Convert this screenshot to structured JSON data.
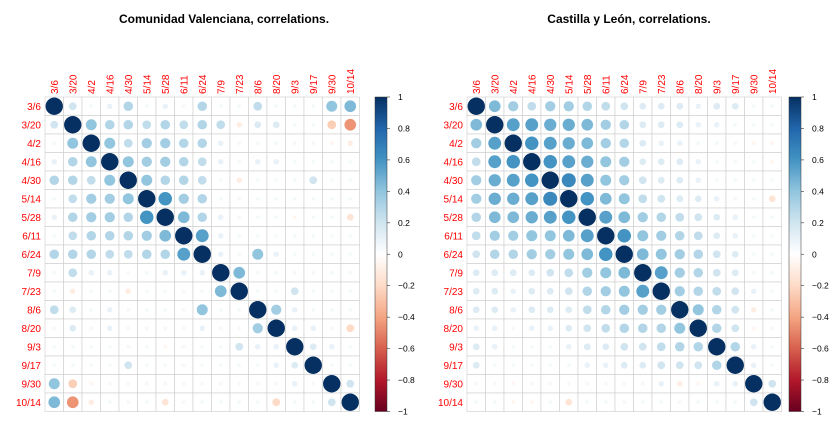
{
  "chart_data": [
    {
      "type": "correlation-matrix",
      "title": "Comunidad Valenciana, correlations.",
      "labels": [
        "3/6",
        "3/20",
        "4/2",
        "4/16",
        "4/30",
        "5/14",
        "5/28",
        "6/11",
        "6/24",
        "7/9",
        "7/23",
        "8/6",
        "8/20",
        "9/3",
        "9/17",
        "9/30",
        "10/14"
      ],
      "colorbar_ticks": [
        "1",
        "0.8",
        "0.6",
        "0.4",
        "0.2",
        "0",
        "−0.2",
        "−0.4",
        "−0.6",
        "−0.8",
        "−1"
      ],
      "range": [
        -1,
        1
      ],
      "matrix": [
        [
          1,
          0.2,
          0.05,
          0.1,
          0.3,
          0.05,
          0.1,
          0.05,
          0.3,
          0.05,
          0.05,
          0.25,
          0.05,
          0.05,
          0.05,
          0.4,
          0.45
        ],
        [
          0.2,
          1,
          0.4,
          0.3,
          0.3,
          0.25,
          0.3,
          0.25,
          0.3,
          0.25,
          -0.1,
          0.15,
          0.15,
          0.05,
          0.05,
          -0.25,
          -0.45
        ],
        [
          0.05,
          0.4,
          1,
          0.4,
          0.25,
          0.35,
          0.35,
          0.3,
          0.3,
          0.1,
          0.05,
          0.05,
          0.05,
          0.05,
          0.05,
          -0.05,
          -0.1
        ],
        [
          0.1,
          0.3,
          0.4,
          1,
          0.4,
          0.35,
          0.35,
          0.3,
          0.25,
          0.1,
          0.05,
          0.1,
          0.1,
          0.05,
          0.05,
          0.05,
          0.05
        ],
        [
          0.3,
          0.3,
          0.25,
          0.4,
          1,
          0.4,
          0.3,
          0.3,
          0.25,
          0.05,
          -0.1,
          0.05,
          0.05,
          0.05,
          0.2,
          0.05,
          0.05
        ],
        [
          0.05,
          0.25,
          0.35,
          0.35,
          0.4,
          1,
          0.6,
          0.35,
          0.3,
          0.05,
          0.05,
          0.05,
          0.05,
          0.05,
          0.05,
          0.05,
          0.05
        ],
        [
          0.1,
          0.3,
          0.35,
          0.35,
          0.3,
          0.6,
          1,
          0.45,
          0.3,
          0.1,
          0.05,
          0.05,
          0.05,
          -0.05,
          0.05,
          0.05,
          -0.15
        ],
        [
          0.05,
          0.25,
          0.3,
          0.3,
          0.3,
          0.35,
          0.45,
          1,
          0.55,
          0.1,
          0.05,
          0.05,
          0.05,
          0.05,
          0.05,
          0.05,
          0.05
        ],
        [
          0.3,
          0.3,
          0.3,
          0.25,
          0.25,
          0.3,
          0.3,
          0.55,
          1,
          0.1,
          0.05,
          0.4,
          0.1,
          0.05,
          0.05,
          0.05,
          0.05
        ],
        [
          0.05,
          0.25,
          0.1,
          0.1,
          0.05,
          0.05,
          0.1,
          0.1,
          0.1,
          1,
          0.45,
          0.05,
          0.05,
          0.05,
          0.05,
          0.05,
          0.05
        ],
        [
          0.05,
          -0.1,
          0.05,
          0.05,
          -0.1,
          0.05,
          0.05,
          0.05,
          0.05,
          0.45,
          1,
          0.05,
          0.05,
          0.2,
          0.05,
          0.05,
          0.05
        ],
        [
          0.25,
          0.15,
          0.05,
          0.1,
          0.05,
          0.05,
          0.05,
          0.05,
          0.4,
          0.05,
          0.05,
          1,
          0.35,
          0.1,
          0.05,
          0.05,
          0.05
        ],
        [
          0.05,
          0.15,
          0.05,
          0.1,
          0.05,
          0.05,
          0.05,
          0.05,
          0.1,
          0.05,
          0.05,
          0.35,
          1,
          0.1,
          0.1,
          0.05,
          -0.2
        ],
        [
          0.05,
          0.05,
          0.05,
          0.05,
          0.05,
          0.05,
          -0.05,
          0.05,
          0.05,
          0.05,
          0.2,
          0.1,
          0.1,
          1,
          0.15,
          0.1,
          0.05
        ],
        [
          0.05,
          0.05,
          0.05,
          0.05,
          0.2,
          0.05,
          0.05,
          0.05,
          0.05,
          0.05,
          0.05,
          0.05,
          0.1,
          0.15,
          1,
          0.05,
          0.05
        ],
        [
          0.4,
          -0.25,
          -0.05,
          0.05,
          0.05,
          0.05,
          0.05,
          0.05,
          0.05,
          0.05,
          0.05,
          0.05,
          0.05,
          0.1,
          0.05,
          1,
          0.2
        ],
        [
          0.45,
          -0.45,
          -0.1,
          0.05,
          0.05,
          0.05,
          -0.15,
          0.05,
          0.05,
          0.05,
          0.05,
          0.05,
          -0.2,
          0.05,
          0.05,
          0.2,
          1
        ]
      ]
    },
    {
      "type": "correlation-matrix",
      "title": "Castilla y León, correlations.",
      "labels": [
        "3/6",
        "3/20",
        "4/2",
        "4/16",
        "4/30",
        "5/14",
        "5/28",
        "6/11",
        "6/24",
        "7/9",
        "7/23",
        "8/6",
        "8/20",
        "9/3",
        "9/17",
        "9/30",
        "10/14"
      ],
      "colorbar_ticks": [
        "1",
        "0.8",
        "0.6",
        "0.4",
        "0.2",
        "0",
        "−0.2",
        "−0.4",
        "−0.6",
        "−0.8",
        "−1"
      ],
      "range": [
        -1,
        1
      ],
      "matrix": [
        [
          1,
          0.45,
          0.35,
          0.25,
          0.35,
          0.35,
          0.3,
          0.25,
          0.2,
          0.15,
          0.15,
          0.15,
          0.1,
          0.15,
          0.15,
          0.05,
          0.05
        ],
        [
          0.45,
          1,
          0.55,
          0.55,
          0.5,
          0.5,
          0.45,
          0.35,
          0.3,
          0.15,
          0.15,
          0.15,
          0.1,
          0.1,
          0.05,
          0.05,
          0.05
        ],
        [
          0.35,
          0.55,
          1,
          0.6,
          0.55,
          0.5,
          0.45,
          0.35,
          0.3,
          0.15,
          0.1,
          0.1,
          0.05,
          0.05,
          0.05,
          -0.05,
          -0.05
        ],
        [
          0.25,
          0.55,
          0.6,
          1,
          0.6,
          0.55,
          0.5,
          0.4,
          0.35,
          0.15,
          0.15,
          0.15,
          0.1,
          0.05,
          0.05,
          0.05,
          -0.05
        ],
        [
          0.35,
          0.5,
          0.55,
          0.6,
          1,
          0.65,
          0.55,
          0.4,
          0.35,
          0.2,
          0.15,
          0.15,
          0.1,
          0.05,
          0.05,
          0.05,
          0.05
        ],
        [
          0.35,
          0.5,
          0.5,
          0.55,
          0.65,
          1,
          0.6,
          0.45,
          0.4,
          0.25,
          0.2,
          0.15,
          0.15,
          0.1,
          0.05,
          0.05,
          -0.15
        ],
        [
          0.3,
          0.45,
          0.45,
          0.5,
          0.55,
          0.6,
          1,
          0.55,
          0.45,
          0.35,
          0.3,
          0.25,
          0.2,
          0.15,
          0.1,
          0.05,
          0.05
        ],
        [
          0.25,
          0.35,
          0.35,
          0.4,
          0.4,
          0.45,
          0.55,
          1,
          0.6,
          0.4,
          0.35,
          0.3,
          0.25,
          0.15,
          0.1,
          0.05,
          0.05
        ],
        [
          0.2,
          0.3,
          0.3,
          0.35,
          0.35,
          0.4,
          0.45,
          0.6,
          1,
          0.45,
          0.4,
          0.35,
          0.3,
          0.2,
          0.15,
          0.05,
          0.05
        ],
        [
          0.15,
          0.15,
          0.15,
          0.15,
          0.2,
          0.25,
          0.35,
          0.4,
          0.45,
          1,
          0.55,
          0.35,
          0.3,
          0.2,
          0.15,
          0.05,
          0.05
        ],
        [
          0.15,
          0.15,
          0.1,
          0.15,
          0.15,
          0.2,
          0.3,
          0.35,
          0.4,
          0.55,
          1,
          0.35,
          0.3,
          0.25,
          0.2,
          0.1,
          0.05
        ],
        [
          0.15,
          0.15,
          0.1,
          0.15,
          0.15,
          0.15,
          0.25,
          0.3,
          0.35,
          0.35,
          0.35,
          1,
          0.4,
          0.3,
          0.2,
          -0.1,
          0.05
        ],
        [
          0.1,
          0.1,
          0.05,
          0.1,
          0.1,
          0.15,
          0.2,
          0.25,
          0.3,
          0.3,
          0.3,
          0.4,
          1,
          0.3,
          0.2,
          -0.05,
          0.05
        ],
        [
          0.15,
          0.1,
          0.05,
          0.05,
          0.05,
          0.1,
          0.15,
          0.15,
          0.2,
          0.2,
          0.25,
          0.3,
          0.3,
          1,
          0.3,
          0.1,
          0.05
        ],
        [
          0.15,
          0.05,
          0.05,
          0.05,
          0.05,
          0.05,
          0.1,
          0.1,
          0.15,
          0.15,
          0.2,
          0.2,
          0.2,
          0.3,
          1,
          0.1,
          0.05
        ],
        [
          0.05,
          0.05,
          -0.05,
          0.05,
          0.05,
          0.05,
          0.05,
          0.05,
          0.05,
          0.05,
          0.1,
          -0.1,
          -0.05,
          0.1,
          0.1,
          1,
          0.2
        ],
        [
          0.05,
          0.05,
          -0.05,
          -0.05,
          0.05,
          -0.15,
          0.05,
          0.05,
          0.05,
          0.05,
          0.05,
          0.05,
          0.05,
          0.05,
          0.05,
          0.2,
          1
        ]
      ]
    }
  ]
}
